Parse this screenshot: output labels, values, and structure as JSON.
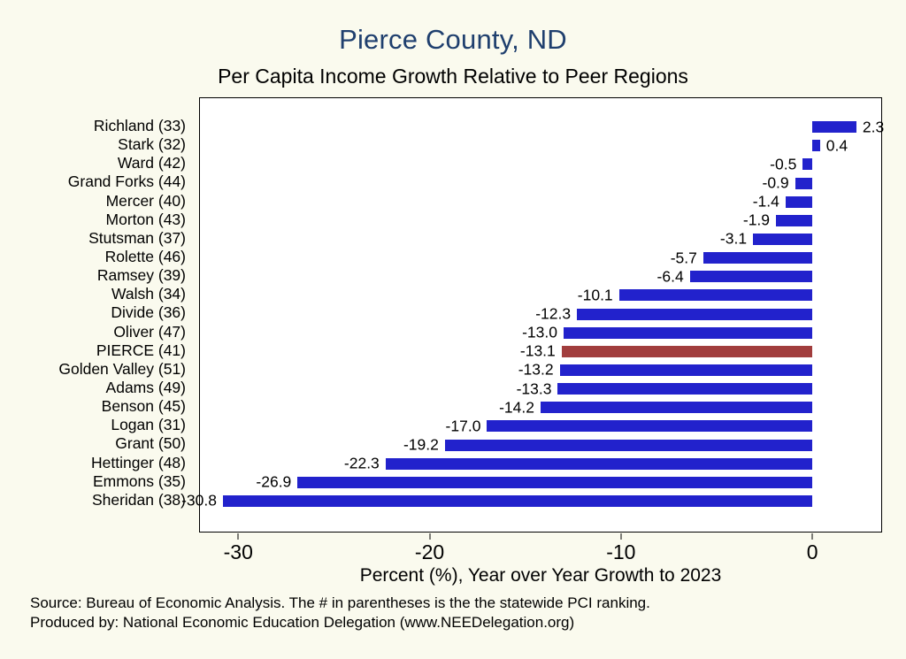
{
  "title": "Pierce County, ND",
  "subtitle": "Per Capita Income Growth Relative to Peer Regions",
  "xlabel": "Percent (%), Year over Year Growth to 2023",
  "source_line1": "Source: Bureau of Economic Analysis. The # in parentheses is the the statewide PCI ranking.",
  "source_line2": "Produced by: National Economic Education Delegation (www.NEEDelegation.org)",
  "colors": {
    "bar": "#2222cc",
    "highlight": "#a13d3d",
    "title_text": "#1f3f6e",
    "background": "#fafaee",
    "plot_background": "#ffffff"
  },
  "chart_data": {
    "type": "bar",
    "orientation": "horizontal",
    "title": "Per Capita Income Growth Relative to Peer Regions",
    "xlabel": "Percent (%), Year over Year Growth to 2023",
    "ylabel": "",
    "categories": [
      "Richland (33)",
      "Stark (32)",
      "Ward (42)",
      "Grand Forks (44)",
      "Mercer (40)",
      "Morton (43)",
      "Stutsman (37)",
      "Rolette (46)",
      "Ramsey (39)",
      "Walsh (34)",
      "Divide (36)",
      "Oliver (47)",
      "PIERCE (41)",
      "Golden Valley (51)",
      "Adams (49)",
      "Benson (45)",
      "Logan (31)",
      "Grant (50)",
      "Hettinger (48)",
      "Emmons (35)",
      "Sheridan (38)"
    ],
    "values": [
      2.3,
      0.4,
      -0.5,
      -0.9,
      -1.4,
      -1.9,
      -3.1,
      -5.7,
      -6.4,
      -10.1,
      -12.3,
      -13.0,
      -13.1,
      -13.2,
      -13.3,
      -14.2,
      -17.0,
      -19.2,
      -22.3,
      -26.9,
      -30.8
    ],
    "value_labels": [
      "2.3",
      "0.4",
      "-0.5",
      "-0.9",
      "-1.4",
      "-1.9",
      "-3.1",
      "-5.7",
      "-6.4",
      "-10.1",
      "-12.3",
      "-13.0",
      "-13.1",
      "-13.2",
      "-13.3",
      "-14.2",
      "-17.0",
      "-19.2",
      "-22.3",
      "-26.9",
      "-30.8"
    ],
    "highlight_index": 12,
    "highlight_category": "PIERCE (41)",
    "x_ticks": [
      -30,
      -20,
      -10,
      0
    ],
    "xlim": [
      -32,
      3.6
    ],
    "grid": false,
    "legend": "none"
  }
}
